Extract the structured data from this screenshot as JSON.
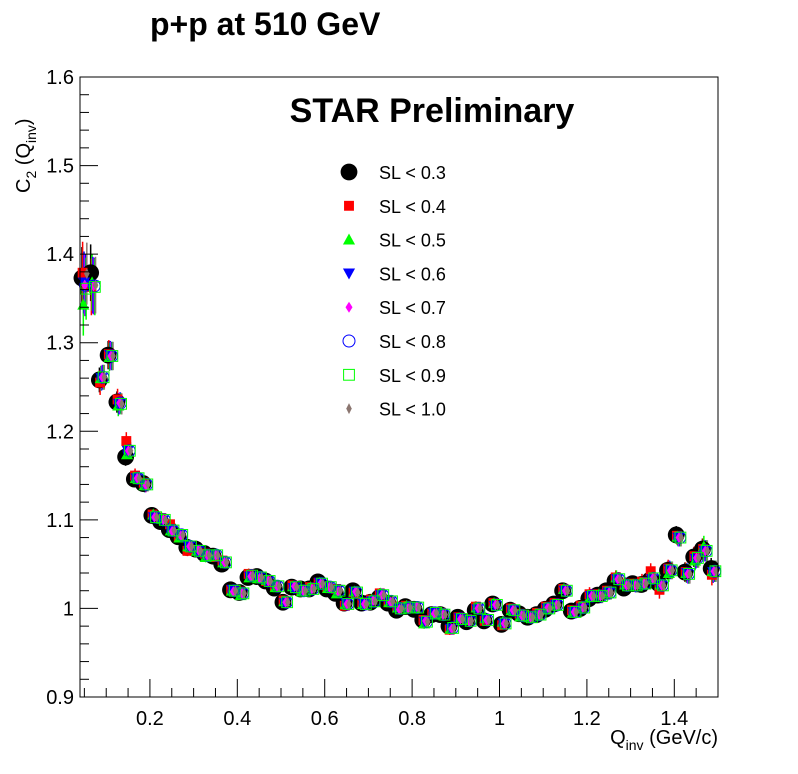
{
  "chart_data": {
    "type": "scatter",
    "title": "p+p at 510 GeV",
    "annotation": "STAR Preliminary",
    "xlabel": "Q",
    "xlabel_sub": "inv",
    "xlabel_unit": " (GeV/c)",
    "ylabel": "C",
    "ylabel_sub": "2",
    "ylabel_arg": " (Q",
    "ylabel_arg_sub": "inv",
    "ylabel_close": ")",
    "xlim": [
      0.04,
      1.5
    ],
    "ylim": [
      0.9,
      1.6
    ],
    "x_ticks": [
      0.2,
      0.4,
      0.6,
      0.8,
      1.0,
      1.2,
      1.4
    ],
    "x_tick_labels": [
      "0.2",
      "0.4",
      "0.6",
      "0.8",
      "1",
      "1.2",
      "1.4"
    ],
    "y_ticks": [
      0.9,
      1.0,
      1.1,
      1.2,
      1.3,
      1.4,
      1.5,
      1.6
    ],
    "y_tick_labels": [
      "0.9",
      "1",
      "1.1",
      "1.2",
      "1.3",
      "1.4",
      "1.5",
      "1.6"
    ],
    "grid": false,
    "legend_position": "top-center",
    "x": [
      0.05,
      0.07,
      0.09,
      0.11,
      0.13,
      0.15,
      0.17,
      0.19,
      0.21,
      0.23,
      0.25,
      0.27,
      0.29,
      0.31,
      0.33,
      0.35,
      0.37,
      0.39,
      0.41,
      0.43,
      0.45,
      0.47,
      0.49,
      0.51,
      0.53,
      0.55,
      0.57,
      0.59,
      0.61,
      0.63,
      0.65,
      0.67,
      0.69,
      0.71,
      0.73,
      0.75,
      0.77,
      0.79,
      0.81,
      0.83,
      0.85,
      0.87,
      0.89,
      0.91,
      0.93,
      0.95,
      0.97,
      0.99,
      1.01,
      1.03,
      1.05,
      1.07,
      1.09,
      1.11,
      1.13,
      1.15,
      1.17,
      1.19,
      1.21,
      1.23,
      1.25,
      1.27,
      1.29,
      1.31,
      1.33,
      1.35,
      1.37,
      1.39,
      1.41,
      1.43,
      1.45,
      1.47,
      1.49
    ],
    "y": [
      1.373,
      1.373,
      1.26,
      1.285,
      1.233,
      1.174,
      1.148,
      1.14,
      1.104,
      1.1,
      1.088,
      1.083,
      1.07,
      1.065,
      1.06,
      1.06,
      1.052,
      1.02,
      1.017,
      1.037,
      1.035,
      1.031,
      1.025,
      1.007,
      1.024,
      1.02,
      1.022,
      1.028,
      1.024,
      1.02,
      1.005,
      1.018,
      1.005,
      1.008,
      1.015,
      1.008,
      1.0,
      1.001,
      1.001,
      0.985,
      0.995,
      0.993,
      0.978,
      0.988,
      0.986,
      1.0,
      0.987,
      1.004,
      0.983,
      0.998,
      0.992,
      0.99,
      0.993,
      1.0,
      1.004,
      1.02,
      0.996,
      1.001,
      1.014,
      1.014,
      1.018,
      1.033,
      1.026,
      1.026,
      1.028,
      1.034,
      1.026,
      1.043,
      1.08,
      1.039,
      1.057,
      1.065,
      1.042
    ],
    "yerr": [
      0.035,
      0.032,
      0.014,
      0.016,
      0.012,
      0.01,
      0.008,
      0.008,
      0.007,
      0.007,
      0.006,
      0.006,
      0.006,
      0.006,
      0.006,
      0.006,
      0.006,
      0.006,
      0.006,
      0.006,
      0.006,
      0.006,
      0.006,
      0.006,
      0.006,
      0.006,
      0.006,
      0.006,
      0.006,
      0.006,
      0.006,
      0.006,
      0.006,
      0.006,
      0.006,
      0.006,
      0.006,
      0.006,
      0.006,
      0.006,
      0.006,
      0.006,
      0.006,
      0.006,
      0.006,
      0.006,
      0.006,
      0.006,
      0.006,
      0.006,
      0.006,
      0.006,
      0.006,
      0.006,
      0.006,
      0.006,
      0.006,
      0.006,
      0.008,
      0.008,
      0.008,
      0.008,
      0.008,
      0.008,
      0.009,
      0.009,
      0.01,
      0.01,
      0.01,
      0.011,
      0.011,
      0.012,
      0.012
    ],
    "series": [
      {
        "name": "SL < 0.3",
        "color": "#000000",
        "marker": "circle-filled",
        "offsets": [
          0.0,
          0.006,
          -0.002,
          0.001,
          0.0,
          -0.003,
          -0.002,
          0.001,
          0.001,
          -0.002,
          0.001,
          -0.002,
          -0.001,
          0.002,
          0.002,
          -0.001,
          -0.002,
          0.001,
          0.001,
          -0.002,
          0.001,
          0.0,
          -0.002,
          0.0,
          0.0,
          0.002,
          0.0,
          0.002,
          -0.002,
          -0.003,
          0.001,
          0.002,
          0.001,
          -0.001,
          -0.003,
          -0.002,
          -0.002,
          0.001,
          -0.002,
          0.002,
          -0.002,
          0.0,
          0.002,
          0.002,
          -0.001,
          -0.002,
          -0.001,
          0.001,
          -0.001,
          0.0,
          0.002,
          0.0,
          0.0,
          -0.001,
          0.001,
          0.0,
          0.001,
          -0.001,
          -0.003,
          0.001,
          0.002,
          -0.002,
          -0.003,
          0.002,
          -0.001,
          -0.002,
          0.002,
          0.0,
          0.003,
          0.002,
          0.001,
          0.002,
          0.003
        ]
      },
      {
        "name": "SL < 0.4",
        "color": "#ff0000",
        "marker": "square-filled",
        "offsets": [
          0.006,
          -0.01,
          -0.005,
          0.002,
          0.003,
          0.015,
          0.002,
          0.002,
          0.002,
          0.002,
          0.007,
          -0.003,
          -0.005,
          0.001,
          0.002,
          -0.002,
          0.002,
          0.001,
          0.002,
          0.002,
          0.001,
          0.0,
          0.0,
          0.002,
          0.002,
          0.001,
          0.002,
          0.001,
          -0.001,
          0.002,
          -0.002,
          0.0,
          0.002,
          0.002,
          0.002,
          -0.001,
          0.002,
          0.002,
          -0.001,
          0.002,
          -0.001,
          0.002,
          -0.002,
          0.002,
          0.002,
          0.002,
          -0.001,
          0.002,
          -0.002,
          0.002,
          0.002,
          0.002,
          0.002,
          0.002,
          0.002,
          0.002,
          0.002,
          0.002,
          0.002,
          0.002,
          0.002,
          0.002,
          0.002,
          0.002,
          0.002,
          0.008,
          -0.005,
          0.002,
          0.002,
          0.002,
          0.002,
          0.002,
          -0.004
        ]
      },
      {
        "name": "SL < 0.5",
        "color": "#00ff00",
        "marker": "triangle-up-filled",
        "offsets": [
          -0.03,
          -0.005,
          0.0,
          -0.001,
          -0.004,
          0.0,
          -0.001,
          -0.001,
          0.002,
          0.001,
          0.0,
          -0.003,
          0.0,
          0.0,
          -0.002,
          0.001,
          0.0,
          0.0,
          -0.002,
          -0.002,
          -0.001,
          0.001,
          -0.001,
          0.001,
          0.001,
          -0.001,
          0.002,
          0.001,
          -0.001,
          -0.003,
          0.0,
          0.001,
          0.0,
          0.002,
          0.002,
          -0.001,
          0.001,
          0.002,
          -0.001,
          -0.002,
          -0.002,
          0.002,
          -0.001,
          0.001,
          0.001,
          0.001,
          0.002,
          0.002,
          0.002,
          0.0,
          -0.001,
          0.0,
          0.0,
          -0.001,
          0.0,
          0.002,
          -0.001,
          0.001,
          -0.001,
          0.002,
          -0.001,
          0.002,
          0.001,
          0.001,
          -0.001,
          0.0,
          0.001,
          -0.003,
          0.001,
          0.001,
          -0.003,
          0.005,
          0.0
        ]
      },
      {
        "name": "SL < 0.6",
        "color": "#0000ff",
        "marker": "triangle-down-filled",
        "offsets": [
          -0.005,
          -0.008,
          0.0,
          0.001,
          -0.002,
          0.004,
          -0.001,
          -0.001,
          -0.001,
          -0.001,
          0.0,
          0.0,
          0.0,
          0.0,
          0.0,
          0.001,
          0.001,
          0.001,
          0.001,
          -0.001,
          0.001,
          -0.001,
          0.001,
          -0.001,
          -0.001,
          0.0,
          -0.001,
          0.001,
          0.001,
          0.001,
          0.001,
          0.001,
          0.0,
          0.0,
          0.0,
          -0.001,
          0.0,
          0.0,
          0.001,
          0.0,
          0.0,
          0.001,
          -0.001,
          0.001,
          0.001,
          -0.001,
          0.001,
          -0.001,
          0.0,
          0.0,
          0.0,
          0.001,
          -0.001,
          0.0,
          0.0,
          0.0,
          0.0,
          -0.001,
          0.0,
          0.001,
          0.0,
          0.0,
          0.001,
          0.001,
          -0.001,
          -0.001,
          0.0,
          0.001,
          0.0,
          0.001,
          -0.001,
          0.0,
          -0.001
        ]
      },
      {
        "name": "SL < 0.7",
        "color": "#ff00ff",
        "marker": "diamond-filled",
        "offsets": [
          -0.008,
          -0.009,
          0.001,
          0.0,
          -0.001,
          0.004,
          -0.001,
          -0.001,
          -0.001,
          0.0,
          -0.001,
          -0.001,
          0.0,
          0.001,
          0.0,
          0.0,
          0.0,
          -0.001,
          0.0,
          -0.001,
          -0.001,
          0.0,
          0.0,
          0.0,
          0.001,
          0.0,
          0.0,
          0.0,
          0.0,
          -0.001,
          0.0,
          0.001,
          0.0,
          0.001,
          0.0,
          -0.001,
          -0.001,
          -0.001,
          0.001,
          0.001,
          -0.001,
          0.0,
          -0.001,
          0.0,
          -0.001,
          0.0,
          0.0,
          0.0,
          0.0,
          0.0,
          0.0,
          0.0,
          0.0,
          0.001,
          0.0,
          0.0,
          0.0,
          0.0,
          0.0,
          0.0,
          0.0,
          0.0,
          0.0,
          0.0,
          0.0,
          0.0,
          0.0,
          0.0,
          0.0,
          0.0,
          0.0,
          0.0,
          0.0
        ]
      },
      {
        "name": "SL < 0.8",
        "color": "#0000ff",
        "marker": "circle-open",
        "offsets": [
          -0.008,
          -0.009,
          0.001,
          0.0,
          -0.001,
          0.004,
          -0.001,
          0.0,
          -0.001,
          0.0,
          0.0,
          0.0,
          0.0,
          0.0,
          0.0,
          0.0,
          0.0,
          0.0,
          0.0,
          0.0,
          0.0,
          0.0,
          0.0,
          0.0,
          0.0,
          0.0,
          0.0,
          0.0,
          0.0,
          0.0,
          0.0,
          0.0,
          0.0,
          0.0,
          0.0,
          0.0,
          0.0,
          0.0,
          0.0,
          0.0,
          0.0,
          0.0,
          0.0,
          0.0,
          0.0,
          0.0,
          0.0,
          0.0,
          0.0,
          0.0,
          0.0,
          0.0,
          0.0,
          0.0,
          0.0,
          0.0,
          0.0,
          0.0,
          0.0,
          0.0,
          0.0,
          0.0,
          0.0,
          0.0,
          0.0,
          0.0,
          0.0,
          0.0,
          0.0,
          0.0,
          0.0,
          0.0,
          0.0
        ]
      },
      {
        "name": "SL < 0.9",
        "color": "#00ff00",
        "marker": "square-open",
        "offsets": [
          -0.012,
          -0.01,
          0.001,
          0.0,
          -0.002,
          0.004,
          -0.001,
          0.0,
          -0.001,
          0.0,
          0.0,
          0.0,
          0.0,
          0.0,
          0.0,
          0.0,
          0.0,
          0.0,
          0.0,
          0.0,
          0.0,
          0.0,
          0.0,
          0.0,
          0.0,
          0.0,
          0.0,
          0.0,
          0.0,
          0.0,
          0.0,
          0.0,
          0.0,
          0.0,
          0.0,
          0.0,
          0.0,
          0.0,
          0.0,
          0.0,
          0.0,
          0.0,
          0.0,
          0.0,
          0.0,
          0.0,
          0.0,
          0.0,
          0.0,
          0.0,
          0.0,
          0.0,
          0.0,
          0.0,
          0.0,
          0.0,
          0.0,
          0.0,
          0.0,
          0.0,
          0.0,
          0.0,
          0.0,
          0.0,
          0.0,
          0.0,
          0.0,
          0.0,
          0.0,
          0.0,
          0.0,
          0.0,
          0.0
        ]
      },
      {
        "name": "SL < 1.0",
        "color": "#8b7670",
        "marker": "thin-diamond-filled",
        "offsets": [
          0.005,
          -0.008,
          0.001,
          0.0,
          -0.002,
          0.004,
          -0.001,
          0.0,
          -0.001,
          0.0,
          0.0,
          0.0,
          0.0,
          0.0,
          0.0,
          0.0,
          0.0,
          0.0,
          0.0,
          0.0,
          0.0,
          0.0,
          0.0,
          0.0,
          0.0,
          0.0,
          0.0,
          0.0,
          0.0,
          0.0,
          0.0,
          0.0,
          0.0,
          0.0,
          0.0,
          0.0,
          0.0,
          0.0,
          0.0,
          0.0,
          0.0,
          0.0,
          0.0,
          0.0,
          0.0,
          0.0,
          0.0,
          0.0,
          0.0,
          0.0,
          0.0,
          0.0,
          0.0,
          0.0,
          0.0,
          0.0,
          0.0,
          0.0,
          0.0,
          0.0,
          0.0,
          0.0,
          0.0,
          0.0,
          0.0,
          0.0,
          0.0,
          0.0,
          0.0,
          0.0,
          0.0,
          0.0,
          0.0
        ]
      }
    ]
  }
}
